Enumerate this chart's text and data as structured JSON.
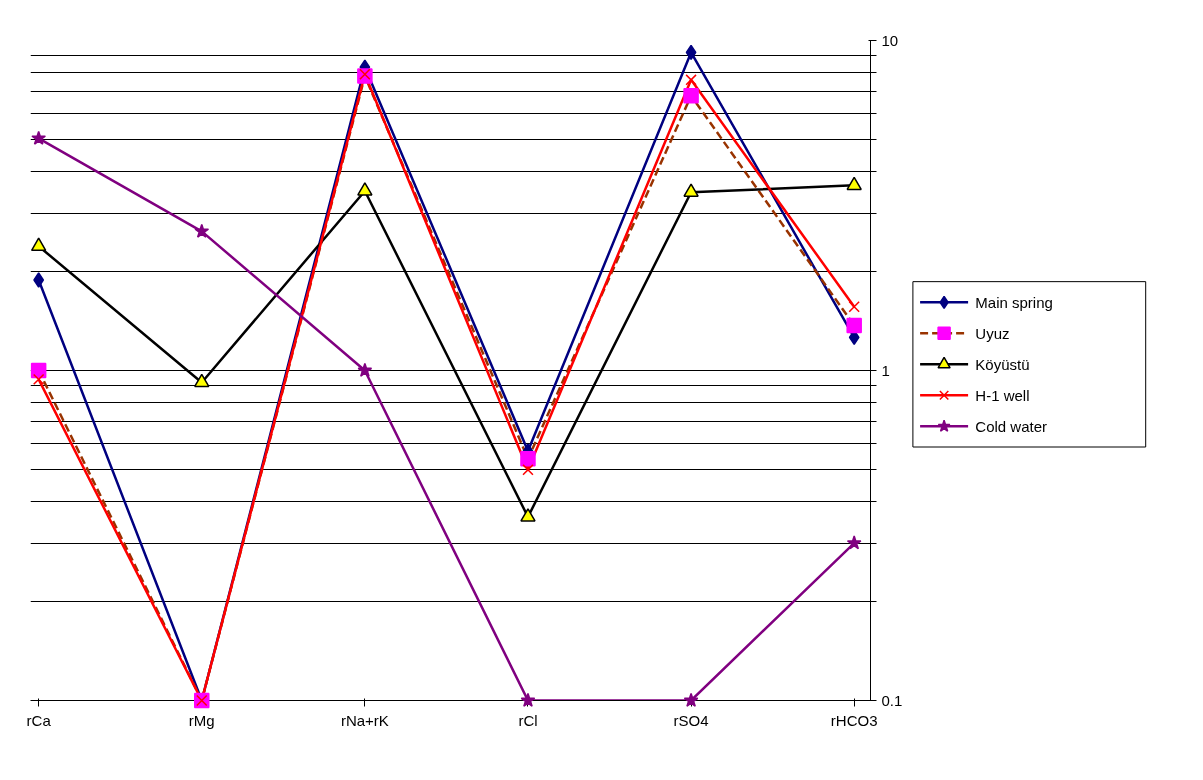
{
  "chart_data": {
    "type": "line",
    "categories": [
      "rCa",
      "rMg",
      "rNa+rK",
      "rCl",
      "rSO4",
      "rHCO3"
    ],
    "series": [
      {
        "name": "Main spring",
        "color": "#000080",
        "marker": "diamond",
        "line_style": "solid",
        "values": [
          1.88,
          0.1,
          8.3,
          0.57,
          9.2,
          1.26
        ]
      },
      {
        "name": "Uyuz",
        "color": "#993300",
        "marker": "square",
        "line_style": "dashed",
        "values": [
          1.0,
          0.1,
          7.8,
          0.54,
          6.8,
          1.37
        ]
      },
      {
        "name": "Köyüstü",
        "color": "#000000",
        "marker": "triangle",
        "line_style": "solid",
        "values": [
          2.38,
          0.92,
          3.5,
          0.36,
          3.47,
          3.64
        ]
      },
      {
        "name": "H-1 well",
        "color": "#ff0000",
        "marker": "cross",
        "line_style": "solid",
        "values": [
          0.94,
          0.1,
          7.9,
          0.5,
          7.6,
          1.56
        ]
      },
      {
        "name": "Cold water",
        "color": "#800080",
        "marker": "star",
        "line_style": "solid",
        "values": [
          5.05,
          2.64,
          1.0,
          0.1,
          0.1,
          0.3
        ]
      }
    ],
    "log": "y",
    "ylim": [
      0.1,
      10
    ],
    "yticks": [
      0.1,
      {
        "value": 0.2,
        "label": null
      },
      {
        "value": 0.3,
        "label": null
      },
      {
        "value": 0.4,
        "label": null
      },
      {
        "value": 0.5,
        "label": null
      },
      {
        "value": 0.6,
        "label": null
      },
      {
        "value": 0.7,
        "label": null
      },
      {
        "value": 0.8,
        "label": null
      },
      {
        "value": 0.9,
        "label": null
      },
      1,
      {
        "value": 2,
        "label": null
      },
      {
        "value": 3,
        "label": null
      },
      {
        "value": 4,
        "label": null
      },
      {
        "value": 5,
        "label": null
      },
      {
        "value": 6,
        "label": null
      },
      {
        "value": 7,
        "label": null
      },
      {
        "value": 8,
        "label": null
      },
      {
        "value": 9,
        "label": null
      },
      10
    ],
    "grid": "y",
    "legend": "right"
  }
}
